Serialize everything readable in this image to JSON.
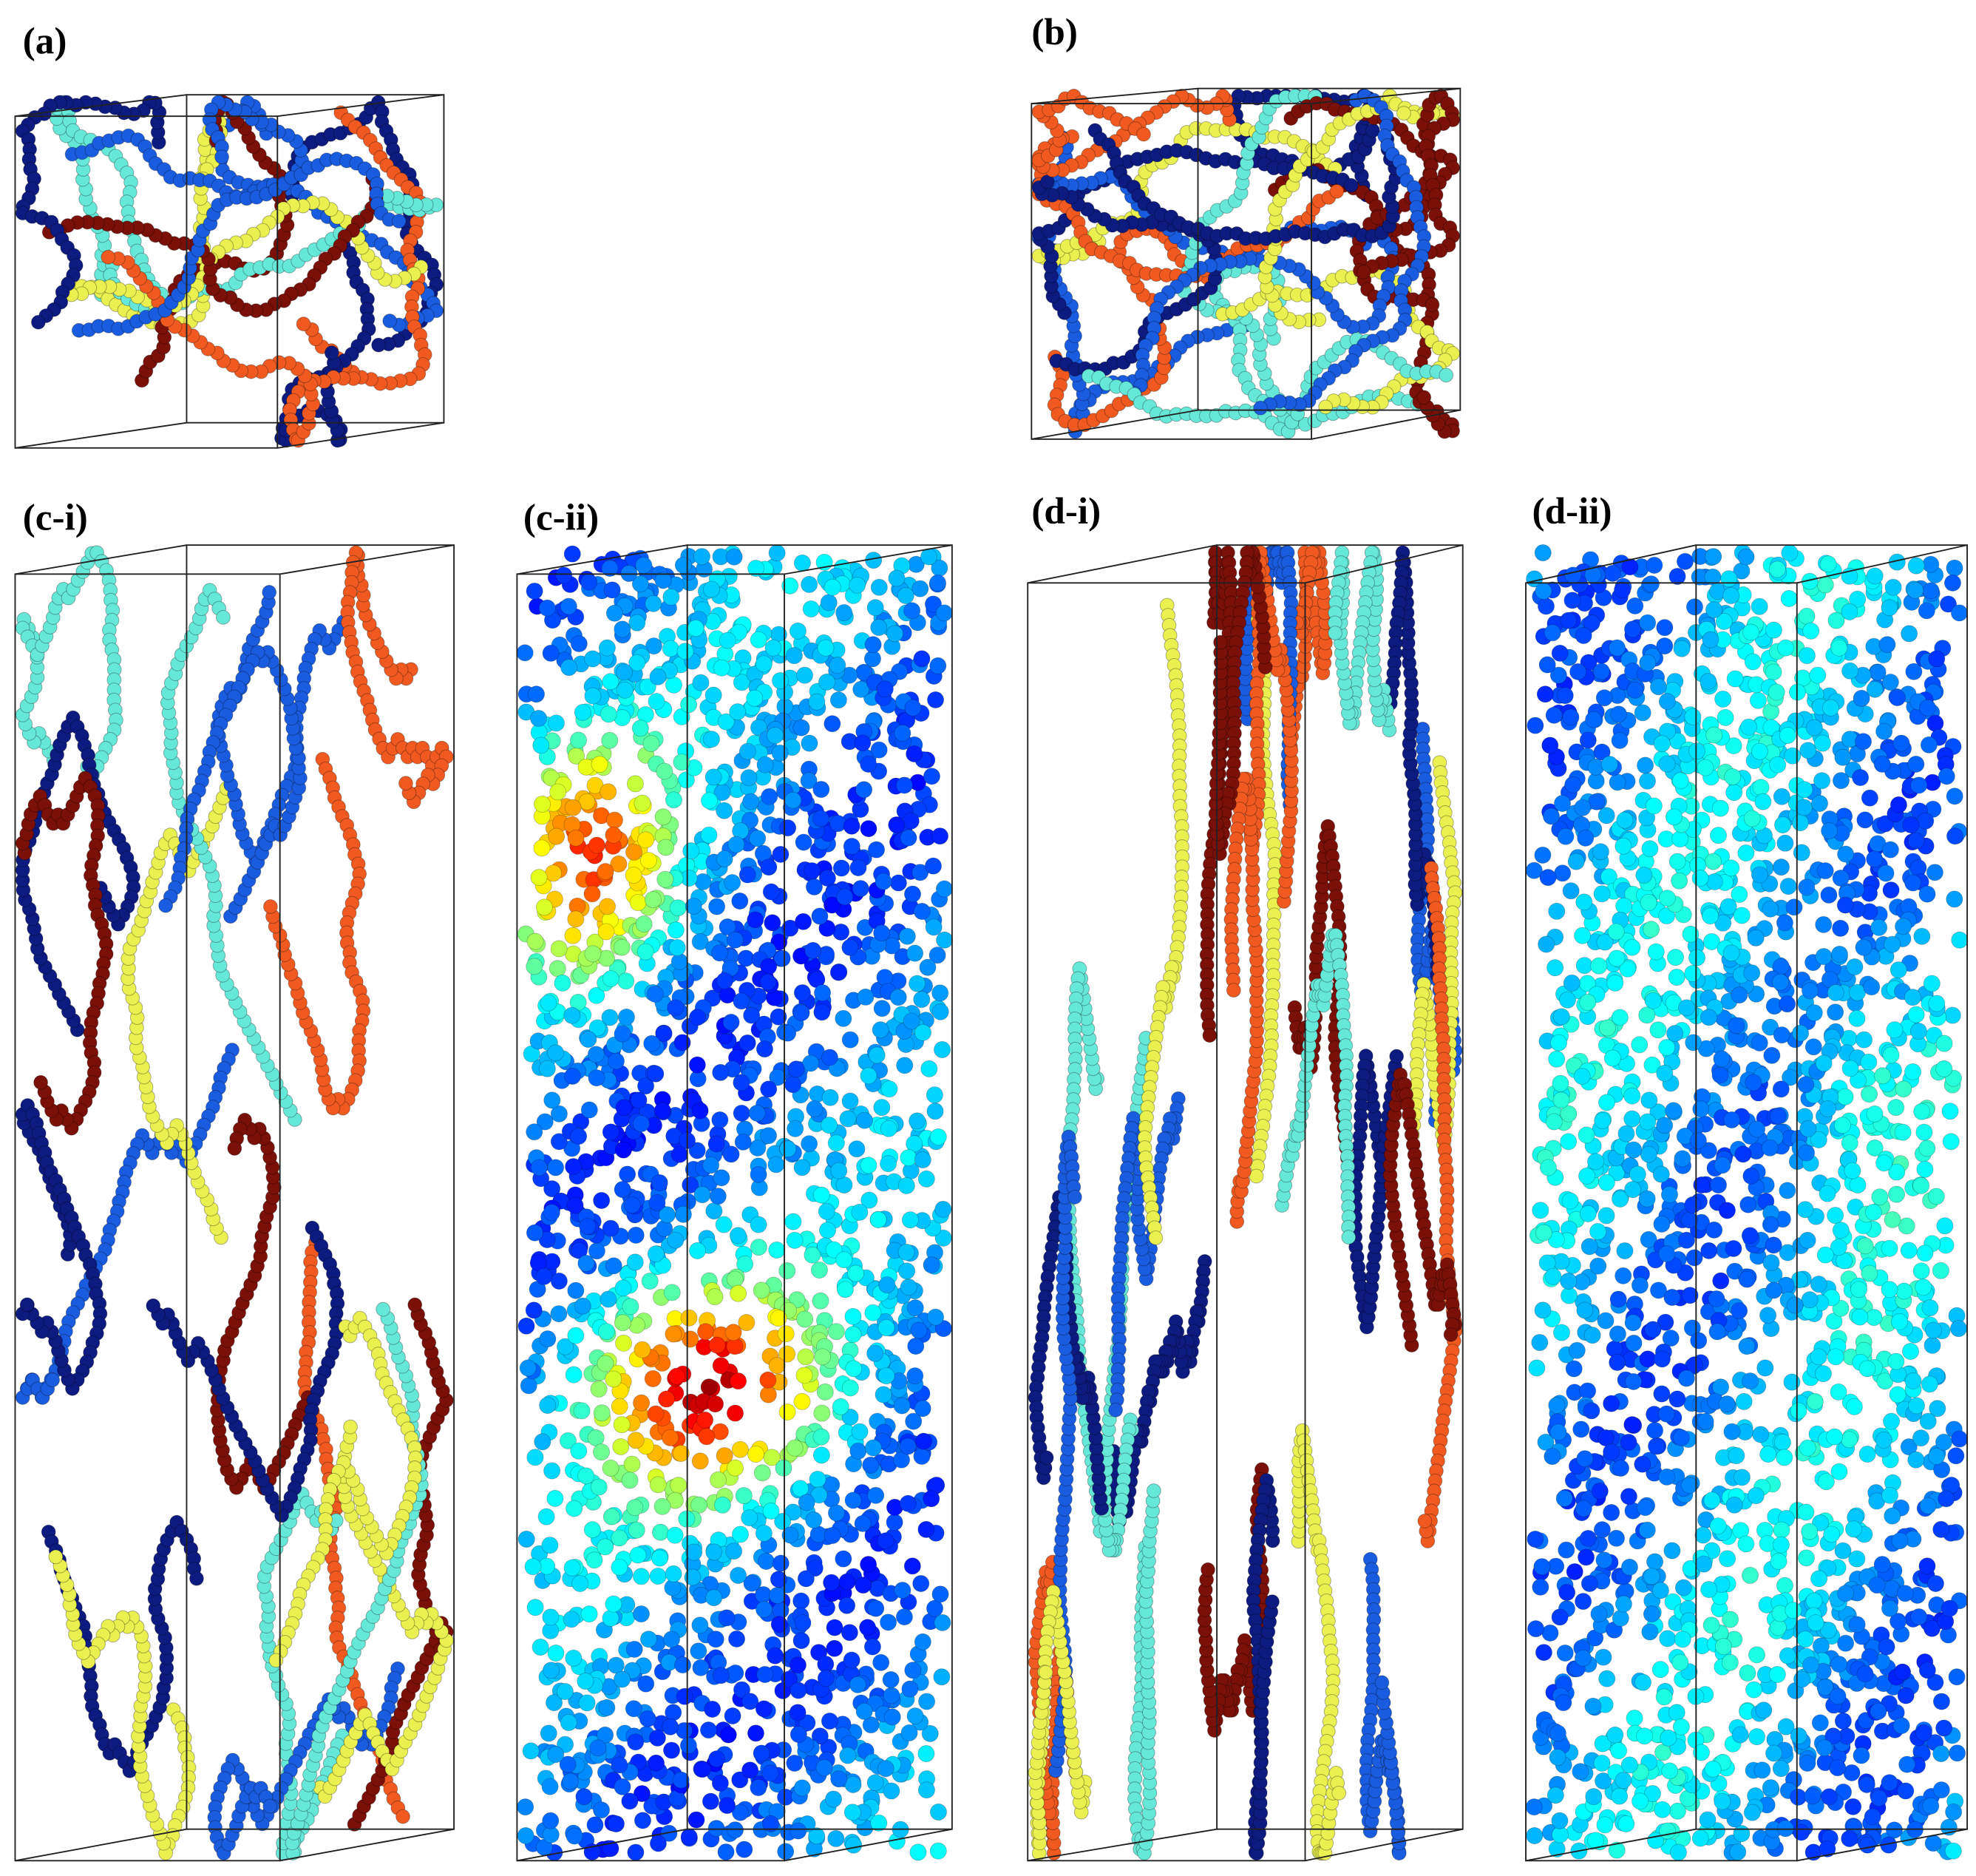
{
  "panels": [
    {
      "label": "(a)"
    },
    {
      "label": "(b)"
    },
    {
      "label": "(c-i)"
    },
    {
      "label": "(c-ii)"
    },
    {
      "label": "(d-i)"
    },
    {
      "label": "(d-ii)"
    }
  ]
}
